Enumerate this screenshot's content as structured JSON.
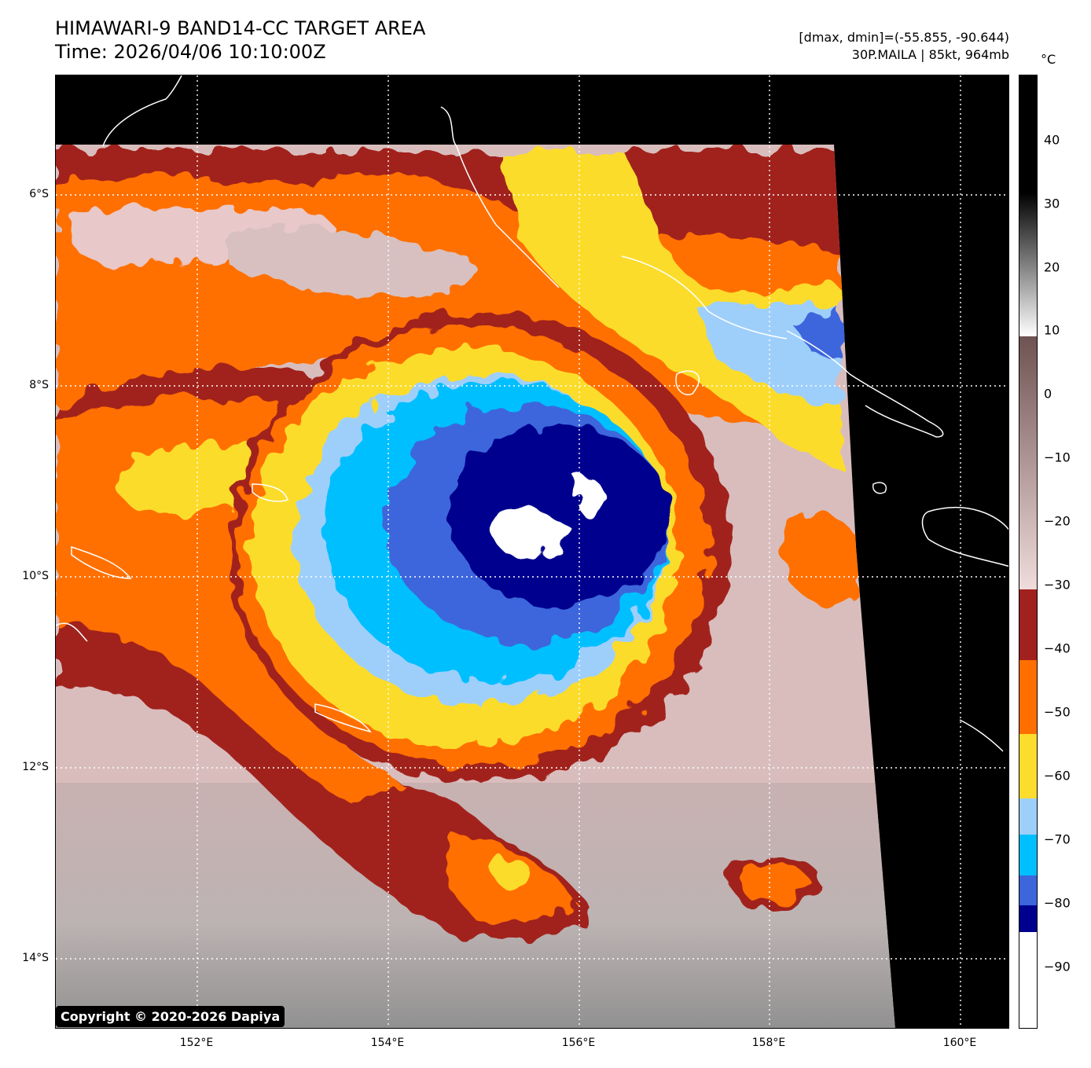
{
  "header": {
    "title_line1": "HIMAWARI-9 BAND14-CC TARGET AREA",
    "title_line2": "Time: 2026/04/06 10:10:00Z",
    "dmax_dmin": "[dmax, dmin]=(-55.855, -90.644)",
    "storm_info": "30P.MAILA | 85kt, 964mb"
  },
  "axes": {
    "lat_labels": [
      "6°S",
      "8°S",
      "10°S",
      "12°S",
      "14°S"
    ],
    "lon_labels": [
      "152°E",
      "154°E",
      "156°E",
      "158°E",
      "160°E"
    ]
  },
  "colorbar": {
    "unit": "°C",
    "ticks": [
      "40",
      "30",
      "20",
      "10",
      "0",
      "−10",
      "−20",
      "−30",
      "−40",
      "−50",
      "−60",
      "−70",
      "−80",
      "−90"
    ]
  },
  "colors": {
    "band_gray_light": "#cfcfcf",
    "band_pink": "#e8c8c8",
    "band_red": "#a1211f",
    "band_orange": "#ff6f00",
    "band_yellow": "#fcdc2c",
    "band_lightblue": "#9ecffb",
    "band_cyan": "#00bfff",
    "band_blue": "#3c66dc",
    "band_navy": "#00008e",
    "band_white": "#ffffff",
    "background": "#000000"
  },
  "copyright": "Copyright © 2020-2026 Dapiya"
}
